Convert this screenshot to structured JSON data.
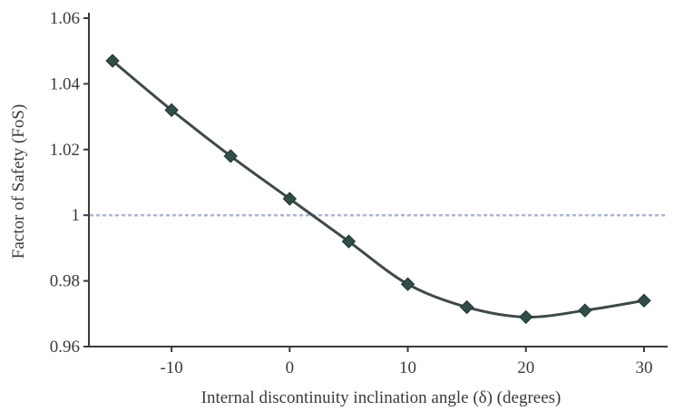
{
  "chart_data": {
    "type": "line",
    "title": "",
    "xlabel": "Internal discontinuity inclination angle (δ) (degrees)",
    "ylabel": "Factor of Safety (FoS)",
    "x": [
      -15,
      -10,
      -5,
      0,
      5,
      10,
      15,
      20,
      25,
      30
    ],
    "series": [
      {
        "values": [
          1.047,
          1.032,
          1.018,
          1.005,
          0.992,
          0.979,
          0.972,
          0.969,
          0.971,
          0.974
        ]
      }
    ],
    "xlim": [
      -17,
      32
    ],
    "ylim": [
      0.96,
      1.06
    ],
    "xticks": [
      -10,
      0,
      10,
      20,
      30
    ],
    "xtick_labels": [
      "-10",
      "0",
      "10",
      "20",
      "30"
    ],
    "yticks": [
      0.96,
      0.98,
      1.0,
      1.02,
      1.04,
      1.06
    ],
    "ytick_labels": [
      "0.96",
      "0.98",
      "1",
      "1.02",
      "1.04",
      "1.06"
    ],
    "reference_line": {
      "y": 1.0,
      "style": "dotted",
      "color": "#a8b4dc"
    },
    "grid": false,
    "legend": "none",
    "colors": {
      "line": "#3c4a48",
      "marker": "#2f4e4a",
      "axis": "#3a3a3a"
    }
  }
}
